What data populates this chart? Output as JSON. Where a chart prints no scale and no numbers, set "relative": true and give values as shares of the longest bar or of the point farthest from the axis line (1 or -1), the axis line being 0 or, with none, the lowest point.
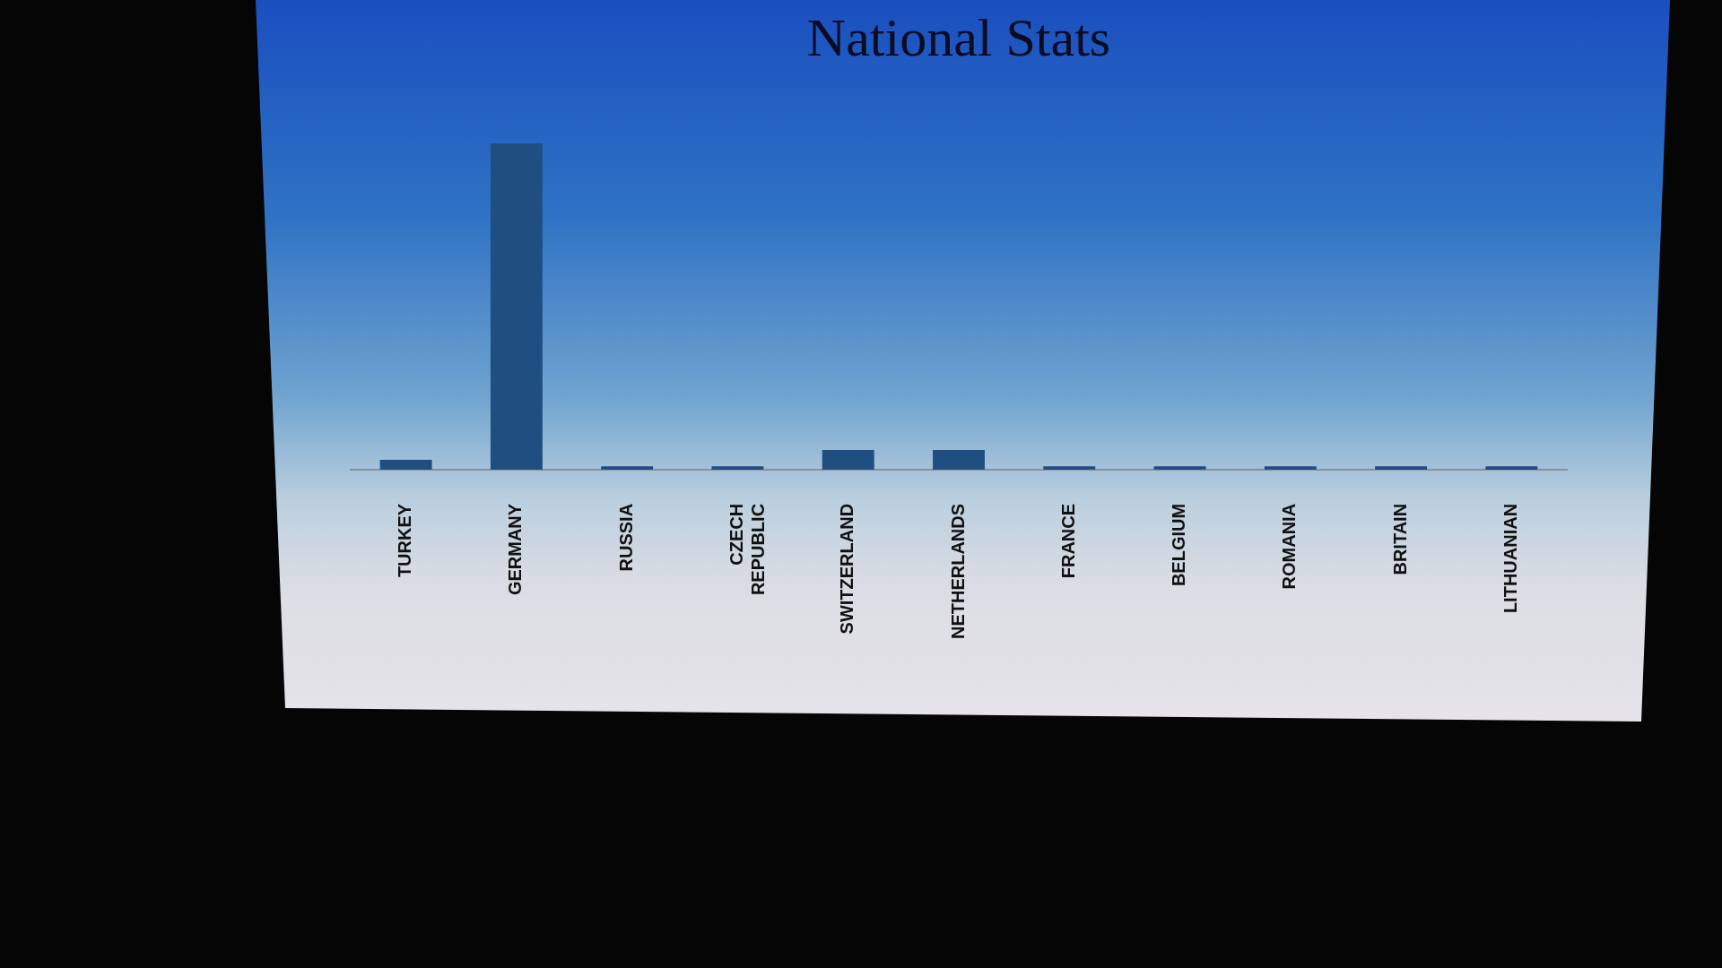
{
  "chart_data": {
    "type": "bar",
    "title": "National Stats",
    "categories": [
      "TURKEY",
      "GERMANY",
      "RUSSIA",
      "CZECH REPUBLIC",
      "SWITZERLAND",
      "NETHERLANDS",
      "FRANCE",
      "BELGIUM",
      "ROMANIA",
      "BRITAIN",
      "LITHUANIAN"
    ],
    "values": [
      0.03,
      1,
      0.01,
      0.01,
      0.06,
      0.06,
      0.01,
      0.01,
      0.01,
      0.01,
      0.01
    ],
    "color": "#1f4f80",
    "relative": true
  }
}
